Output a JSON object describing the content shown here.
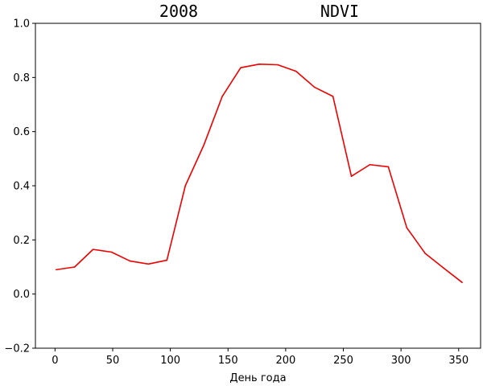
{
  "chart_data": {
    "type": "line",
    "title_left": "2008",
    "title_right": "NDVI",
    "xlabel": "День года",
    "ylabel": "",
    "xlim": [
      -17,
      369
    ],
    "ylim": [
      -0.2,
      1.0
    ],
    "x_ticks": [
      0,
      50,
      100,
      150,
      200,
      250,
      300,
      350
    ],
    "y_ticks": [
      -0.2,
      0.0,
      0.2,
      0.4,
      0.6,
      0.8,
      1.0
    ],
    "grid": false,
    "series": [
      {
        "color": "#ee0000",
        "x": [
          1,
          17,
          33,
          49,
          65,
          81,
          97,
          113,
          129,
          145,
          161,
          177,
          193,
          209,
          225,
          241,
          257,
          273,
          289,
          305,
          321,
          337,
          353
        ],
        "y": [
          0.09,
          0.1,
          0.165,
          0.155,
          0.122,
          0.111,
          0.125,
          0.4,
          0.55,
          0.73,
          0.836,
          0.849,
          0.847,
          0.823,
          0.764,
          0.73,
          0.435,
          0.478,
          0.47,
          0.245,
          0.15,
          0.096,
          0.043
        ]
      }
    ]
  }
}
